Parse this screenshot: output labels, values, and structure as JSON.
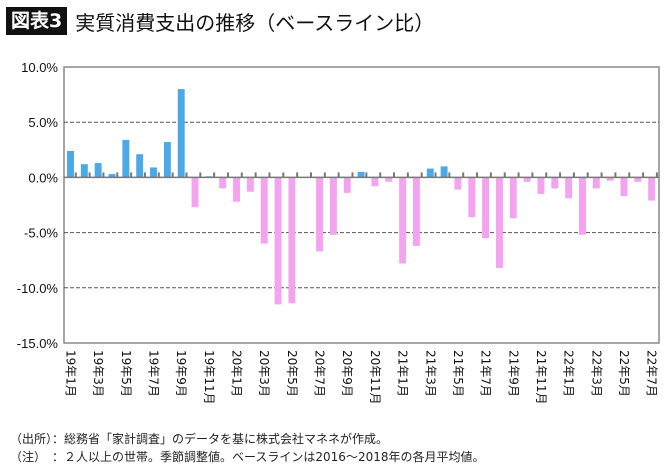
{
  "header": {
    "badge": "図表3",
    "title": "実質消費支出の推移（ベースライン比）"
  },
  "chart_data": {
    "type": "bar",
    "title": "実質消費支出の推移（ベースライン比）",
    "xlabel": "",
    "ylabel": "",
    "ylim": [
      -15,
      10
    ],
    "yticks": [
      "10.0%",
      "5.0%",
      "0.0%",
      "-5.0%",
      "-10.0%",
      "-15.0%"
    ],
    "ytick_values": [
      10,
      5,
      0,
      -5,
      -10,
      -15
    ],
    "grid": "dashed horizontal at 5% steps",
    "colors": {
      "positive": "#4ba9e8",
      "negative": "#f4a3f1",
      "axis": "#777777"
    },
    "categories": [
      "19年1月",
      "19年2月",
      "19年3月",
      "19年4月",
      "19年5月",
      "19年6月",
      "19年7月",
      "19年8月",
      "19年9月",
      "19年10月",
      "19年11月",
      "19年12月",
      "20年1月",
      "20年2月",
      "20年3月",
      "20年4月",
      "20年5月",
      "20年6月",
      "20年7月",
      "20年8月",
      "20年9月",
      "20年10月",
      "20年11月",
      "20年12月",
      "21年1月",
      "21年2月",
      "21年3月",
      "21年4月",
      "21年5月",
      "21年6月",
      "21年7月",
      "21年8月",
      "21年9月",
      "21年10月",
      "21年11月",
      "21年12月",
      "22年1月",
      "22年2月",
      "22年3月",
      "22年4月",
      "22年5月",
      "22年6月",
      "22年7月"
    ],
    "xtick_labels": [
      "19年1月",
      "19年3月",
      "19年5月",
      "19年7月",
      "19年9月",
      "19年11月",
      "20年1月",
      "20年3月",
      "20年5月",
      "20年7月",
      "20年9月",
      "20年11月",
      "21年1月",
      "21年3月",
      "21年5月",
      "21年7月",
      "21年9月",
      "21年11月",
      "22年1月",
      "22年3月",
      "22年5月",
      "22年7月"
    ],
    "values": [
      2.4,
      1.2,
      1.3,
      0.3,
      3.4,
      2.1,
      0.9,
      3.2,
      8.0,
      -2.7,
      0.1,
      -1.0,
      -2.2,
      -1.3,
      -6.0,
      -11.5,
      -11.4,
      0.0,
      -6.7,
      -5.2,
      -1.4,
      0.5,
      -0.8,
      -0.4,
      -7.8,
      -6.2,
      0.8,
      1.0,
      -1.1,
      -3.6,
      -5.5,
      -8.2,
      -3.7,
      -0.4,
      -1.5,
      -1.0,
      -1.9,
      -5.2,
      -1.0,
      -0.3,
      -1.7,
      -0.4,
      -2.1
    ]
  },
  "notes": {
    "source": "（出所）：総務省「家計調査」のデータを基に株式会社マネネが作成。",
    "note": "（注）　：２人以上の世帯。季節調整値。ベースラインは2016〜2018年の各月平均値。"
  }
}
